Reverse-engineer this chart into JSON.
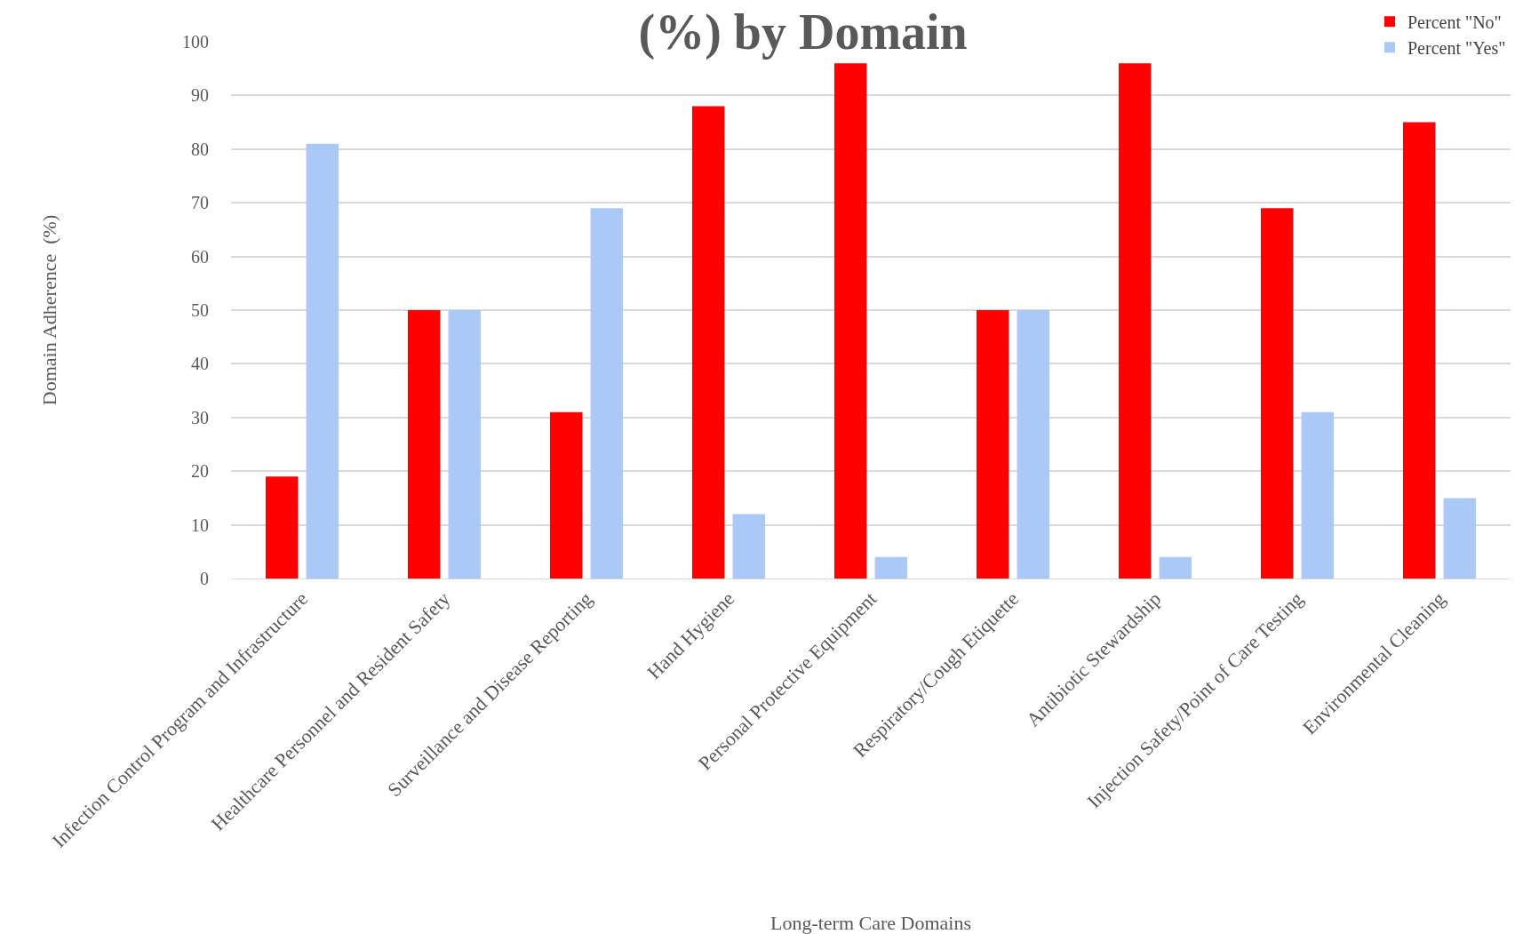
{
  "chart_data": {
    "type": "bar",
    "title": "(%) by Domain",
    "xlabel": "Long-term Care Domains",
    "ylabel": "Domain Adherence  (%)",
    "categories": [
      "Infection Control Program and Infrastructure",
      "Healthcare Personnel and Resident Safety",
      "Surveillance and Disease Reporting",
      "Hand Hygiene",
      "Personal Protective Equipment",
      "Respiratory/Cough Etiquette",
      "Antibiotic Stewardship",
      "Injection Safety/Point of Care Testing",
      "Environmental Cleaning"
    ],
    "series": [
      {
        "name": "Percent \"No\"",
        "color": "#ff0000",
        "values": [
          19,
          50,
          31,
          88,
          96,
          50,
          96,
          69,
          85
        ]
      },
      {
        "name": "Percent \"Yes\"",
        "color": "#abc9f7",
        "values": [
          81,
          50,
          69,
          12,
          4,
          50,
          4,
          31,
          15
        ]
      }
    ],
    "ylim": [
      0,
      100
    ],
    "yticks": [
      0,
      10,
      20,
      30,
      40,
      50,
      60,
      70,
      80,
      90,
      100
    ],
    "grid": "y",
    "legend": "top right"
  }
}
